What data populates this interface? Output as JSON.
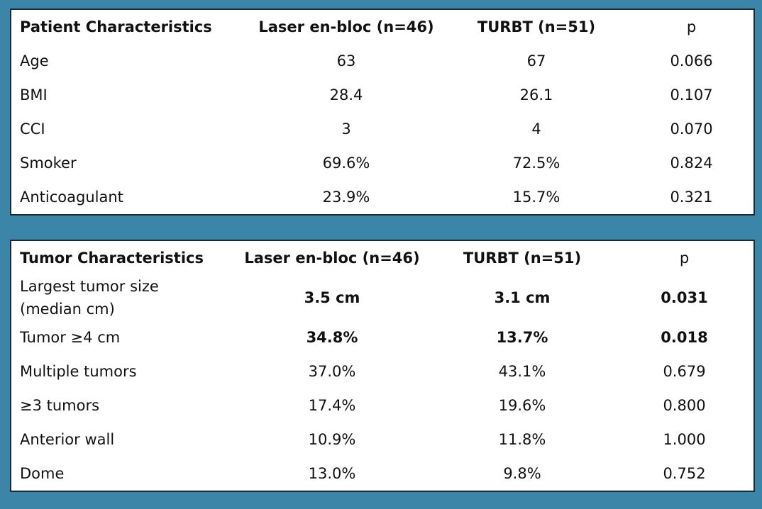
{
  "tables": [
    {
      "header": [
        "Patient Characteristics",
        "Laser en-bloc (n=46)",
        "TURBT (n=51)",
        "p"
      ],
      "bold_header_columns": [
        0,
        1,
        2
      ],
      "rows": [
        [
          "Age",
          "63",
          "67",
          "0.066"
        ],
        [
          "BMI",
          "28.4",
          "26.1",
          "0.107"
        ],
        [
          "CCI",
          "3",
          "4",
          "0.070"
        ],
        [
          "Smoker",
          "69.6%",
          "72.5%",
          "0.824"
        ],
        [
          "Anticoagulant",
          "23.9%",
          "15.7%",
          "0.321"
        ]
      ],
      "bold_rows": []
    },
    {
      "header": [
        "Tumor Characteristics",
        "Laser en-bloc (n=46)",
        "TURBT (n=51)",
        "p"
      ],
      "bold_header_columns": [
        0,
        1,
        2
      ],
      "rows": [
        [
          "Largest tumor size (median cm)",
          "3.5 cm",
          "3.1 cm",
          "0.031"
        ],
        [
          "Tumor ≥4 cm",
          "34.8%",
          "13.7%",
          "0.018"
        ],
        [
          "Multiple tumors",
          "37.0%",
          "43.1%",
          "0.679"
        ],
        [
          "≥3 tumors",
          "17.4%",
          "19.6%",
          "0.800"
        ],
        [
          "Anterior wall",
          "10.9%",
          "11.8%",
          "1.000"
        ],
        [
          "Dome",
          "13.0%",
          "9.8%",
          "0.752"
        ]
      ],
      "bold_rows": [
        0,
        1
      ]
    }
  ]
}
